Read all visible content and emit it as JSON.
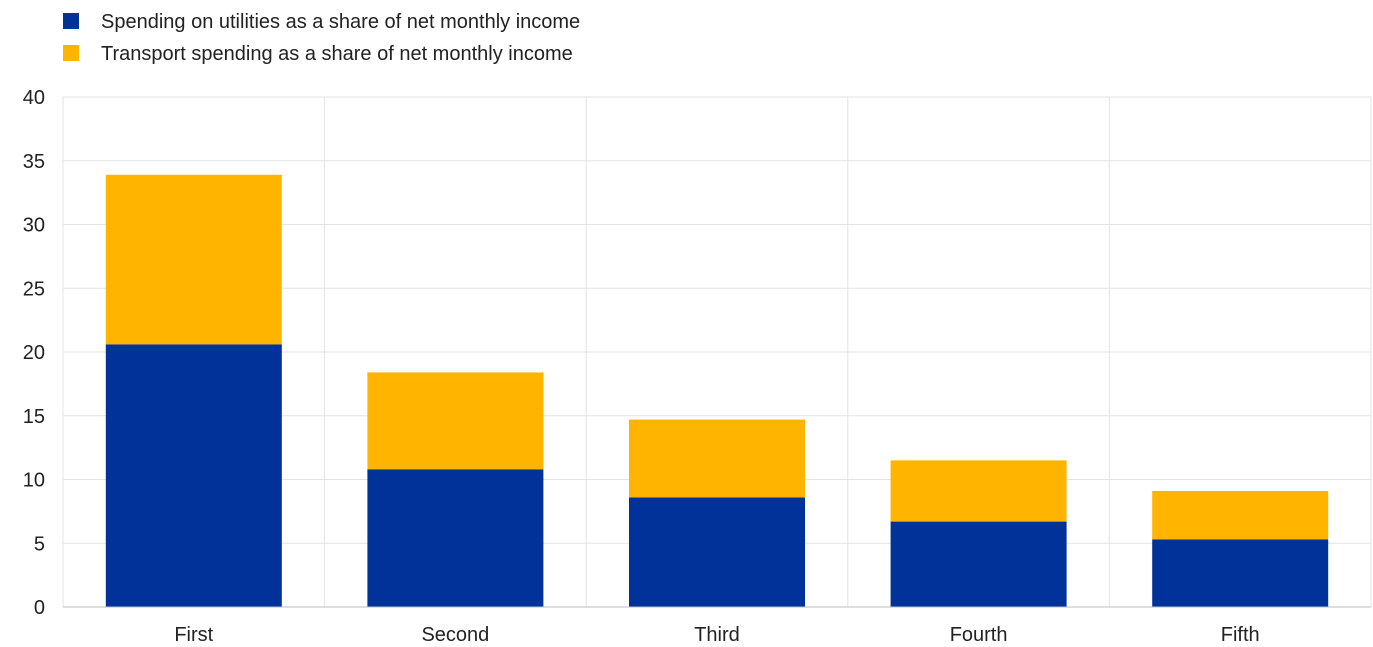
{
  "chart_data": {
    "type": "bar",
    "stacked": true,
    "categories": [
      "First",
      "Second",
      "Third",
      "Fourth",
      "Fifth"
    ],
    "series": [
      {
        "name": "Spending on utilities as a share of net monthly income",
        "color": "#003299",
        "values": [
          20.6,
          10.8,
          8.6,
          6.7,
          5.3
        ]
      },
      {
        "name": "Transport spending as a share of net monthly income",
        "color": "#FFB400",
        "values": [
          13.3,
          7.6,
          6.1,
          4.8,
          3.8
        ]
      }
    ],
    "ylim": [
      0,
      40
    ],
    "yticks": [
      0,
      5,
      10,
      15,
      20,
      25,
      30,
      35,
      40
    ],
    "title": "",
    "xlabel": "",
    "ylabel": "",
    "grid": true,
    "legend_position": "top-left"
  }
}
